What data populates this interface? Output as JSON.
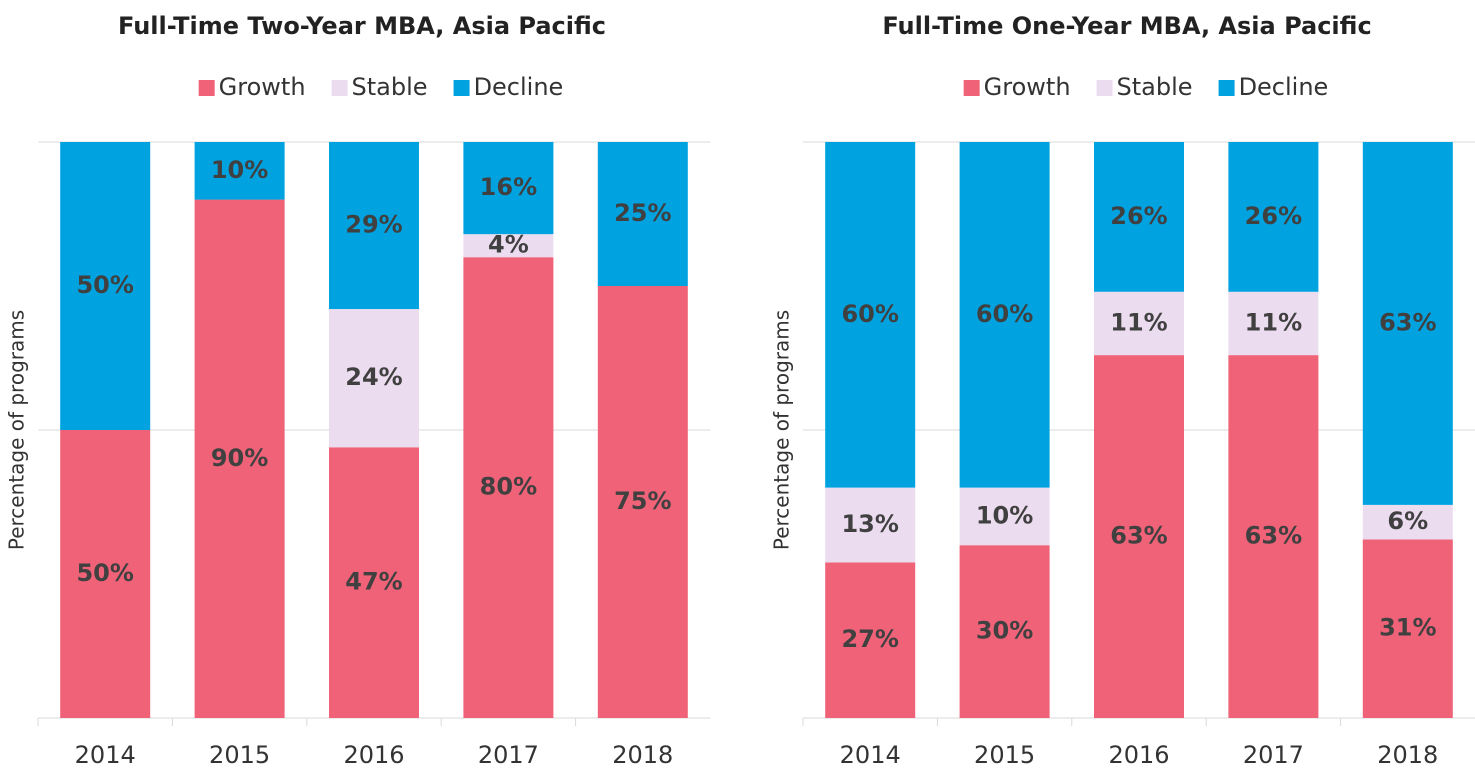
{
  "chart_data": [
    {
      "type": "stacked_bar",
      "title": "Full-Time Two-Year MBA, Asia Pacific",
      "y_label": "Percentage of programs",
      "categories": [
        "2014",
        "2015",
        "2016",
        "2017",
        "2018"
      ],
      "ylim": [
        0,
        100
      ],
      "yticks": [
        0,
        50,
        100
      ],
      "grid": true,
      "legend": "top",
      "series": [
        {
          "name": "Growth",
          "color": "#ef6278",
          "values": [
            50,
            90,
            47,
            80,
            75
          ],
          "value_labels": [
            "50%",
            "90%",
            "47%",
            "80%",
            "75%"
          ]
        },
        {
          "name": "Stable",
          "color": "#ecdcf0",
          "values": [
            null,
            null,
            24,
            4,
            null
          ],
          "value_labels": [
            null,
            null,
            "24%",
            "4%",
            null
          ]
        },
        {
          "name": "Decline",
          "color": "#00a2e0",
          "values": [
            50,
            10,
            29,
            16,
            25
          ],
          "value_labels": [
            "50%",
            "10%",
            "29%",
            "16%",
            "25%"
          ]
        }
      ]
    },
    {
      "type": "stacked_bar",
      "title": "Full-Time One-Year MBA, Asia Pacific",
      "y_label": "Percentage of programs",
      "categories": [
        "2014",
        "2015",
        "2016",
        "2017",
        "2018"
      ],
      "ylim": [
        0,
        100
      ],
      "yticks": [
        0,
        50,
        100
      ],
      "grid": true,
      "legend": "top",
      "series": [
        {
          "name": "Growth",
          "color": "#ef6278",
          "values": [
            27,
            30,
            63,
            63,
            31
          ],
          "value_labels": [
            "27%",
            "30%",
            "63%",
            "63%",
            "31%"
          ]
        },
        {
          "name": "Stable",
          "color": "#ecdcf0",
          "values": [
            13,
            10,
            11,
            11,
            6
          ],
          "value_labels": [
            "13%",
            "10%",
            "11%",
            "11%",
            "6%"
          ]
        },
        {
          "name": "Decline",
          "color": "#00a2e0",
          "values": [
            60,
            60,
            26,
            26,
            63
          ],
          "value_labels": [
            "60%",
            "60%",
            "26%",
            "26%",
            "63%"
          ]
        }
      ]
    }
  ]
}
